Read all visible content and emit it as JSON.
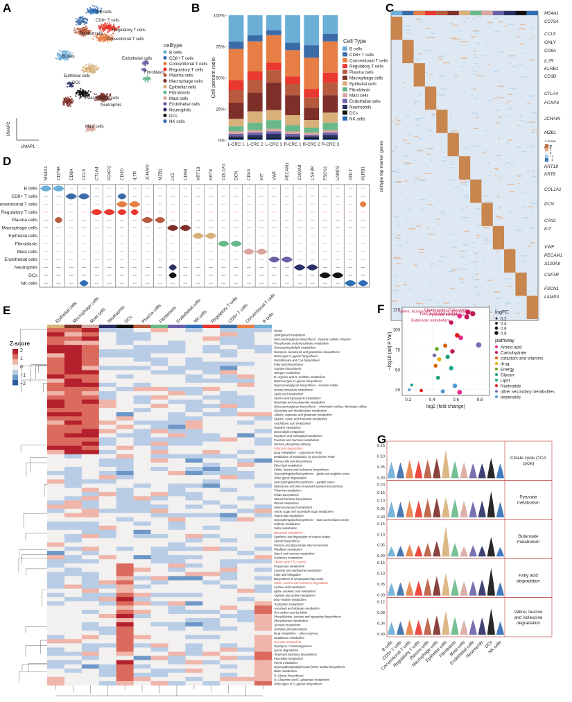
{
  "panels": {
    "A": "A",
    "B": "B",
    "C": "C",
    "D": "D",
    "E": "E",
    "F": "F",
    "G": "G"
  },
  "celltypes": [
    "B cells",
    "CD8+ T cells",
    "Conventional T cells",
    "Regulatory T cells",
    "Plasma cells",
    "Macrophage cells",
    "Epithelial cells",
    "Fibroblasts",
    "Mast cells",
    "Endothelial cells",
    "Neutrophils",
    "DCs",
    "NK cells"
  ],
  "colors": [
    "#6BAED6",
    "#3C6CA8",
    "#E67E45",
    "#E8382F",
    "#B85A3E",
    "#7E2F2A",
    "#D8B07A",
    "#69B88A",
    "#D9A6A0",
    "#6A62A8",
    "#2B2F66",
    "#111111",
    "#2F6EB5"
  ],
  "panelA": {
    "legend_title": "celltype",
    "xlabel": "UMAP1",
    "ylabel": "UMAP2",
    "cluster_labels": [
      {
        "text": "NK cells",
        "ci": 12
      },
      {
        "text": "CD8+ T cells",
        "ci": 1
      },
      {
        "text": "Plasma cells",
        "ci": 4
      },
      {
        "text": "Regulatory T cells",
        "ci": 3
      },
      {
        "text": "Conventional T cells",
        "ci": 2
      },
      {
        "text": "B cells",
        "ci": 0
      },
      {
        "text": "Endothelial cells",
        "ci": 9
      },
      {
        "text": "Fibroblasts",
        "ci": 7
      },
      {
        "text": "Epithelial cells",
        "ci": 6
      },
      {
        "text": "DCs",
        "ci": 11
      },
      {
        "text": "Macrophage cells",
        "ci": 5
      },
      {
        "text": "Neutrophils",
        "ci": 10
      },
      {
        "text": "Mast cells",
        "ci": 8
      }
    ]
  },
  "chart_data": [
    {
      "id": "B",
      "type": "bar",
      "stacked": true,
      "title": "",
      "ylabel": "Cell percent radio",
      "legend_title": "Cell Type",
      "ylim": [
        0,
        100
      ],
      "yticks": [
        "0%",
        "25%",
        "50%",
        "75%",
        "100%"
      ],
      "categories": [
        "L-CRC 1",
        "L-CRC 2",
        "L-CRC 3",
        "R-CRC 1",
        "R-CRC 2",
        "R-CRC 3"
      ],
      "series": [
        {
          "name": "B cells",
          "values": [
            21,
            16,
            12,
            22,
            24,
            15
          ]
        },
        {
          "name": "CD8+ T cells",
          "values": [
            6,
            5,
            4,
            6,
            10,
            6
          ]
        },
        {
          "name": "Conventional T cells",
          "values": [
            25,
            24,
            22,
            21,
            25,
            25
          ]
        },
        {
          "name": "Regulatory T cells",
          "values": [
            8,
            7,
            6,
            6,
            7,
            8
          ]
        },
        {
          "name": "Plasma cells",
          "values": [
            10,
            10,
            10,
            9,
            8,
            10
          ]
        },
        {
          "name": "Macrophage cells",
          "values": [
            13,
            15,
            22,
            16,
            10,
            14
          ]
        },
        {
          "name": "Epithelial cells",
          "values": [
            6,
            9,
            8,
            8,
            6,
            8
          ]
        },
        {
          "name": "Fibroblasts",
          "values": [
            4,
            6,
            7,
            5,
            4,
            6
          ]
        },
        {
          "name": "Mast cells",
          "values": [
            2,
            2,
            2,
            2,
            2,
            2
          ]
        },
        {
          "name": "Endothelial cells",
          "values": [
            2,
            2,
            2,
            2,
            1,
            2
          ]
        },
        {
          "name": "Neutrophils",
          "values": [
            1,
            2,
            3,
            1,
            1,
            2
          ]
        },
        {
          "name": "DCs",
          "values": [
            1,
            1,
            1,
            1,
            1,
            1
          ]
        },
        {
          "name": "NK cells",
          "values": [
            1,
            1,
            1,
            1,
            1,
            1
          ]
        }
      ]
    },
    {
      "id": "F",
      "type": "scatter",
      "xlabel": "log2 (fold change)",
      "ylabel": "−log10 (adj P Val)",
      "xlim": [
        0.15,
        0.88
      ],
      "ylim": [
        18,
        128
      ],
      "xticks": [
        0.2,
        0.4,
        0.6,
        0.8
      ],
      "yticks": [
        25,
        50,
        75,
        100,
        125
      ],
      "size_legend_title": "logFC",
      "size_legend": [
        0.2,
        0.4,
        0.6,
        0.8
      ],
      "color_legend_title": "pathway",
      "pathways": [
        {
          "name": "Amino acid",
          "color": "#E7298A"
        },
        {
          "name": "Carbohydrate",
          "color": "#C2185B"
        },
        {
          "name": "cofactors and vitamins",
          "color": "#D95F02"
        },
        {
          "name": "drug",
          "color": "#E6AB02"
        },
        {
          "name": "Energy",
          "color": "#66A61E"
        },
        {
          "name": "Glycan",
          "color": "#1B9E77"
        },
        {
          "name": "Lipid",
          "color": "#17A589"
        },
        {
          "name": "Nucleotide",
          "color": "#E41A1C"
        },
        {
          "name": "other secondary metabolites",
          "color": "#7570B3"
        },
        {
          "name": "terpenoids",
          "color": "#4F9AD6"
        }
      ],
      "points": [
        {
          "x": 0.7,
          "y": 122,
          "p": 1,
          "label": "Citrate cycle (TCA cycle)"
        },
        {
          "x": 0.74,
          "y": 120,
          "p": 1,
          "label": "Valine, leucine and isoleucine degradation"
        },
        {
          "x": 0.63,
          "y": 117,
          "p": 0,
          "label": "Fatty acid degradation"
        },
        {
          "x": 0.69,
          "y": 116,
          "p": 1,
          "label": "Pyruvate metabolism"
        },
        {
          "x": 0.56,
          "y": 109,
          "p": 1,
          "label": "Butanoate metabolism"
        },
        {
          "x": 0.61,
          "y": 93,
          "p": 7
        },
        {
          "x": 0.64,
          "y": 90,
          "p": 0
        },
        {
          "x": 0.79,
          "y": 81,
          "p": 8
        },
        {
          "x": 0.51,
          "y": 80,
          "p": 2
        },
        {
          "x": 0.44,
          "y": 76,
          "p": 4
        },
        {
          "x": 0.57,
          "y": 73,
          "p": 1
        },
        {
          "x": 0.42,
          "y": 68,
          "p": 8
        },
        {
          "x": 0.53,
          "y": 66,
          "p": 5
        },
        {
          "x": 0.46,
          "y": 63,
          "p": 3
        },
        {
          "x": 0.43,
          "y": 55,
          "p": 2
        },
        {
          "x": 0.56,
          "y": 52,
          "p": 6
        },
        {
          "x": 0.45,
          "y": 40,
          "p": 5
        },
        {
          "x": 0.23,
          "y": 31,
          "p": 6
        },
        {
          "x": 0.59,
          "y": 30,
          "p": 9
        },
        {
          "x": 0.21,
          "y": 25,
          "p": 9
        },
        {
          "x": 0.31,
          "y": 24,
          "p": 7
        },
        {
          "x": 0.49,
          "y": 23,
          "p": 9
        },
        {
          "x": 0.63,
          "y": 22,
          "p": 0
        }
      ]
    },
    {
      "id": "G",
      "type": "violin",
      "pathway_labels": [
        "Citrate cycle (TCA cycle)",
        "Pyruvate metabolism",
        "Butanoate metabolism",
        "Fatty acid degradation",
        "Valine, leucine and isoleucine degradation"
      ],
      "yticks": [
        [
          "0.00",
          "0.05",
          "0.10",
          "0.15"
        ],
        [
          "0.00",
          "0.05",
          "0.10",
          "0.15",
          "0.20"
        ],
        [
          "0.00",
          "0.05",
          "0.10",
          "0.15"
        ],
        [
          "0.00",
          "0.05",
          "0.10",
          "0.15"
        ],
        [
          "0.00",
          "0.04",
          "0.08",
          "0.12"
        ]
      ],
      "heights": [
        [
          0.5,
          0.48,
          0.55,
          0.52,
          0.56,
          0.6,
          0.85,
          0.52,
          0.48,
          0.45,
          0.45,
          0.6,
          0.44
        ],
        [
          0.48,
          0.46,
          0.5,
          0.5,
          0.55,
          0.58,
          0.6,
          0.55,
          0.5,
          0.48,
          0.5,
          0.78,
          0.46
        ],
        [
          0.3,
          0.32,
          0.36,
          0.34,
          0.4,
          0.46,
          0.9,
          0.4,
          0.3,
          0.34,
          0.32,
          0.58,
          0.28
        ],
        [
          0.38,
          0.4,
          0.42,
          0.44,
          0.52,
          0.58,
          0.68,
          0.5,
          0.42,
          0.44,
          0.48,
          0.82,
          0.4
        ],
        [
          0.38,
          0.4,
          0.45,
          0.44,
          0.52,
          0.58,
          0.72,
          0.54,
          0.44,
          0.46,
          0.52,
          0.78,
          0.4
        ]
      ]
    }
  ],
  "panelC": {
    "ylabel": "celltype top marker genes",
    "zscore_title": "z-score",
    "zscore_ticks": [
      "2",
      "1",
      "0",
      "−1",
      "−2"
    ],
    "genes": [
      {
        "g": "MS4A1",
        "y": 21
      },
      {
        "g": "CD79A",
        "y": 33
      },
      {
        "g": "CCL5",
        "y": 51
      },
      {
        "g": "GNLY",
        "y": 63
      },
      {
        "g": "CD8A",
        "y": 75
      },
      {
        "g": "IL7R",
        "y": 90
      },
      {
        "g": "KLRB1",
        "y": 101
      },
      {
        "g": "CD3D",
        "y": 112
      },
      {
        "g": "CTLA4",
        "y": 137
      },
      {
        "g": "FOXP3",
        "y": 150
      },
      {
        "g": "JCHAIN",
        "y": 173
      },
      {
        "g": "MZB1",
        "y": 193
      },
      {
        "g": "LYZ",
        "y": 214
      },
      {
        "g": "KRT18",
        "y": 242
      },
      {
        "g": "KRT8",
        "y": 253
      },
      {
        "g": "COL1A1",
        "y": 275
      },
      {
        "g": "DCN",
        "y": 296
      },
      {
        "g": "CPA3",
        "y": 320
      },
      {
        "g": "KIT",
        "y": 332
      },
      {
        "g": "VWF",
        "y": 358
      },
      {
        "g": "PECAM1",
        "y": 370
      },
      {
        "g": "S100A8",
        "y": 382
      },
      {
        "g": "CSF3R",
        "y": 398
      },
      {
        "g": "FSCN1",
        "y": 418
      },
      {
        "g": "LAMP3",
        "y": 430
      }
    ]
  },
  "panelD": {
    "genes": [
      "MS4A1",
      "CD79A",
      "CD8A",
      "CCL5",
      "CTLA4",
      "FOXP3",
      "CD3D",
      "IL7R",
      "JCHAIN",
      "MZB1",
      "LYZ",
      "CD68",
      "KRT18",
      "KRT8",
      "COL1A1",
      "DCN",
      "CPA3",
      "KIT",
      "VWF",
      "PECAM1",
      "S100A8",
      "CSF3R",
      "FSCN1",
      "LAMP3",
      "GNLY",
      "KLRB1"
    ],
    "rows": [
      "B cells",
      "CD8+ T cells",
      "Conventional T cells",
      "Regulatory T cells",
      "Plasma cells",
      "Macrophage cells",
      "Epithelial cells",
      "Fibroblasts",
      "Mast cells",
      "Endothelial cells",
      "Neutrophils",
      "DCs",
      "NK cells"
    ],
    "expr": [
      {
        "g": 0,
        "r": 0,
        "w": 1.0
      },
      {
        "g": 1,
        "r": 0,
        "w": 1.0
      },
      {
        "g": 1,
        "r": 4,
        "w": 0.7
      },
      {
        "g": 2,
        "r": 1,
        "w": 1.0
      },
      {
        "g": 3,
        "r": 1,
        "w": 1.0
      },
      {
        "g": 3,
        "r": 12,
        "w": 0.8
      },
      {
        "g": 4,
        "r": 3,
        "w": 1.0
      },
      {
        "g": 5,
        "r": 3,
        "w": 1.0
      },
      {
        "g": 6,
        "r": 1,
        "w": 0.8
      },
      {
        "g": 6,
        "r": 2,
        "w": 1.0
      },
      {
        "g": 6,
        "r": 3,
        "w": 0.8
      },
      {
        "g": 7,
        "r": 2,
        "w": 1.0
      },
      {
        "g": 7,
        "r": 3,
        "w": 0.7
      },
      {
        "g": 8,
        "r": 4,
        "w": 1.0
      },
      {
        "g": 9,
        "r": 4,
        "w": 0.9
      },
      {
        "g": 10,
        "r": 5,
        "w": 1.0
      },
      {
        "g": 10,
        "r": 10,
        "w": 0.7
      },
      {
        "g": 10,
        "r": 11,
        "w": 0.7
      },
      {
        "g": 11,
        "r": 5,
        "w": 1.0
      },
      {
        "g": 12,
        "r": 6,
        "w": 1.0
      },
      {
        "g": 13,
        "r": 6,
        "w": 1.0
      },
      {
        "g": 14,
        "r": 7,
        "w": 1.0
      },
      {
        "g": 15,
        "r": 7,
        "w": 1.0
      },
      {
        "g": 16,
        "r": 8,
        "w": 1.0
      },
      {
        "g": 17,
        "r": 8,
        "w": 1.0
      },
      {
        "g": 18,
        "r": 9,
        "w": 1.0
      },
      {
        "g": 19,
        "r": 9,
        "w": 1.0
      },
      {
        "g": 20,
        "r": 10,
        "w": 1.0
      },
      {
        "g": 21,
        "r": 10,
        "w": 1.0
      },
      {
        "g": 22,
        "r": 11,
        "w": 1.0
      },
      {
        "g": 23,
        "r": 11,
        "w": 1.0
      },
      {
        "g": 24,
        "r": 12,
        "w": 1.0
      },
      {
        "g": 25,
        "r": 12,
        "w": 0.9
      },
      {
        "g": 25,
        "r": 2,
        "w": 0.6
      }
    ]
  },
  "panelE": {
    "legend_title": "Z-score",
    "legend_ticks": [
      "2",
      "1",
      "0",
      "−1",
      "−2"
    ],
    "columns": [
      "Epithelial cells",
      "Macrophage cells",
      "Mast cells",
      "Neutrophils",
      "DCs",
      "Plasma cells",
      "Fibroblasts",
      "Endothelial cells",
      "NK cells",
      "Regulatory T cells",
      "CD8+ T cells",
      "Conventional T cells",
      "B cells"
    ],
    "col_color_index": [
      6,
      5,
      8,
      10,
      11,
      4,
      7,
      9,
      12,
      3,
      1,
      2,
      0
    ],
    "highlight": [
      "Fatty acid degradation",
      "Butanoate metabolism",
      "Citrate cycle (TCA cycle)",
      "Valine, leucine and isoleucine degradation",
      "Pyruvate metabolism"
    ],
    "rows": [
      "cluster",
      "Sphingolipid metabolism",
      "Glycosaminoglycan biosynthesis - heparan sulfate / heparin",
      "Phosphonate and phosphinate metabolism",
      "Glycerophospholipid metabolism",
      "Neomycin, kanamycin and gentamicin biosynthesis",
      "Mucin type O−glycan biosynthesis",
      "Pantothenate and CoA biosynthesis",
      "Fatty acid biosynthesis",
      "Arginine biosynthesis",
      "Nitrogen metabolism",
      "D−Arginine and D−ornithine metabolism",
      "Mannose type O−glycan biosynthesis",
      "Glycosaminoglycan biosynthesis − keratan sulfate",
      "Inositol phosphate metabolism",
      "Lipoic acid metabolism",
      "Taurine and hypotaurine metabolism",
      "Nicotinate and nicotinamide metabolism",
      "Glycosaminoglycan biosynthesis − chondroitin sulfate / dermatan sulfate",
      "Glyoxylate and dicarboxylate metabolism",
      "Alanine, aspartate and glutamate metabolism",
      "Glycine, serine and threonine metabolism",
      "Arachidonic acid metabolism",
      "Histidine metabolism",
      "Glycerolipid metabolism",
      "Porphyrin and chlorophyll metabolism",
      "Fructose and mannose metabolism",
      "Pentose phosphate pathway",
      "Fatty acid degradation",
      "Drug metabolism − cytochrome P450",
      "Metabolism of xenobiotics by cytochrome P450",
      "Primary bile acid biosynthesis",
      "Ether lipid metabolism",
      "Valine, leucine and isoleucine biosynthesis",
      "Glycosphingolipid biosynthesis − globo and isoglobo series",
      "Other glycan degradation",
      "Glycosphingolipid biosynthesis − ganglio series",
      "Ubiquinone and other terpenoid−quinone biosynthesis",
      "Thiamine metabolism",
      "Folate biosynthesis",
      "Steroid hormone biosynthesis",
      "Retinol metabolism",
      "Selenocompound metabolism",
      "Amino sugar and nucleotide sugar metabolism",
      "Vitamin B6 metabolism",
      "Glycosphingolipid biosynthesis − lacto and neolacto series",
      "Caffeine metabolism",
      "Sulfur metabolism",
      "Butanoate metabolism",
      "Synthesis and degradation of ketone bodies",
      "Steroid biosynthesis",
      "Pentose and glucuronate interconversions",
      "Riboflavin metabolism",
      "Starch and sucrose metabolism",
      "Galactose metabolism",
      "Citrate cycle (TCA cycle)",
      "Propanoate metabolism",
      "Cysteine and methionine metabolism",
      "Fatty acid elongation",
      "Biosynthesis of unsaturated fatty acids",
      "Valine, leucine and isoleucine degradation",
      "Linoleic acid metabolism",
      "alpha−Linolenic acid metabolism",
      "Arginine and proline metabolism",
      "beta−Alanine metabolism",
      "Tryptophan metabolism",
      "Ascorbate and aldarate metabolism",
      "One carbon pool by folate",
      "Phenylalanine, tyrosine and tryptophan biosynthesis",
      "Phenylalanine metabolism",
      "Tyrosine metabolism",
      "Oxidative phosphorylation",
      "Drug metabolism − other enzymes",
      "Glutathione metabolism",
      "Pyruvate metabolism",
      "Glycolysis / Gluconeogenesis",
      "Lysine degradation",
      "Terpenoid backbone biosynthesis",
      "Pyrimidine metabolism",
      "Purine metabolism",
      "Glycosylphosphatidylinositol (GPI)−anchor biosynthesis",
      "Biotin metabolism",
      "N−Glycan biosynthesis",
      "D−Glutamine and D−glutamate metabolism",
      "Other types of O−glycan biosynthesis"
    ]
  }
}
